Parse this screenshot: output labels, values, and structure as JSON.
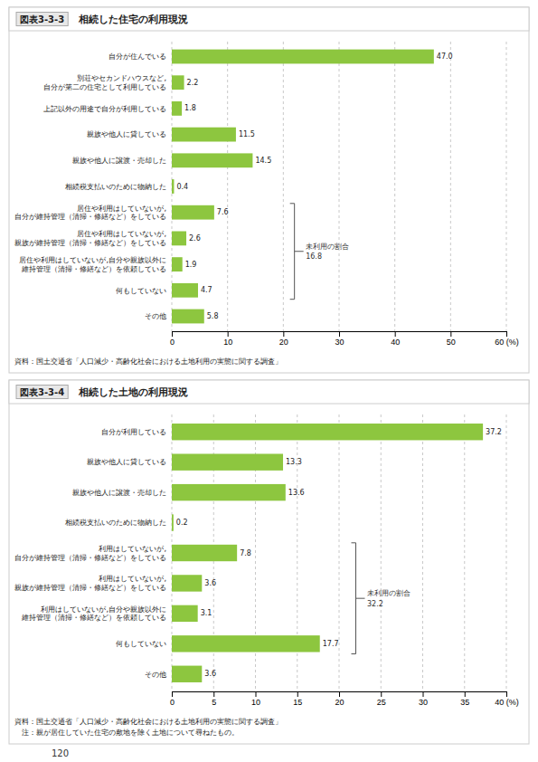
{
  "chart_data": [
    {
      "type": "bar",
      "orientation": "horizontal",
      "subtitle": "図表3-3-3",
      "title": "相続した住宅の利用現況",
      "categories": [
        "自分が住んでいる",
        "別荘やセカンドハウスなど,\n自分が第二の住宅として利用している",
        "上記以外の用途で自分が利用している",
        "親族や他人に貸している",
        "親族や他人に譲渡・売却した",
        "相続税支払いのために物納した",
        "居住や利用はしていないが,\n自分が維持管理（清掃・修繕など）をしている",
        "居住や利用はしていないが,\n親族が維持管理（清掃・修繕など）をしている",
        "居住や利用はしていないが,自分や親族以外に\n維持管理（清掃・修繕など）を依頼している",
        "何もしていない",
        "その他"
      ],
      "values": [
        47.0,
        2.2,
        1.8,
        11.5,
        14.5,
        0.4,
        7.6,
        2.6,
        1.9,
        4.7,
        5.8
      ],
      "value_labels": [
        "47.0",
        "2.2",
        "1.8",
        "11.5",
        "14.5",
        "0.4",
        "7.6",
        "2.6",
        "1.9",
        "4.7",
        "5.8"
      ],
      "data_labels": true,
      "color": "#8dc63f",
      "xlim": [
        0,
        60
      ],
      "xticks": [
        0,
        10,
        20,
        30,
        40,
        50,
        {
          "value": 60,
          "label": "60 (%)"
        }
      ],
      "grid": true,
      "annotations": [
        {
          "type": "bracket",
          "category_indices": [
            6,
            7,
            8,
            9
          ],
          "x": 22.0,
          "text": "未利用の割合",
          "value": 16.8
        },
        {
          "type": "note",
          "text": "資料：国土交通省「人口減少・高齢化社会における土地利用の実態に関する調査」"
        }
      ]
    },
    {
      "type": "bar",
      "orientation": "horizontal",
      "subtitle": "図表3-3-4",
      "title": "相続した土地の利用現況",
      "categories": [
        "自分が利用している",
        "親族や他人に貸している",
        "親族や他人に譲渡・売却した",
        "相続税支払いのために物納した",
        "利用はしていないが,\n自分が維持管理（清掃・修繕など）をしている",
        "利用はしていないが,\n親族が維持管理（清掃・修繕など）をしている",
        "利用はしていないが,自分や親族以外に\n維持管理（清掃・修繕など）を依頼している",
        "何もしていない",
        "その他"
      ],
      "values": [
        37.2,
        13.3,
        13.6,
        0.2,
        7.8,
        3.6,
        3.1,
        17.7,
        3.6
      ],
      "data_labels": true,
      "color": "#8dc63f",
      "xlim": [
        0,
        40
      ],
      "xticks": [
        0,
        5,
        10,
        15,
        20,
        25,
        30,
        35,
        {
          "value": 40,
          "label": "40 (%)"
        }
      ],
      "grid": true,
      "annotations": [
        {
          "type": "bracket",
          "category_indices": [
            4,
            5,
            6,
            7
          ],
          "x": 22.0,
          "text": "未利用の割合",
          "value": 32.2
        },
        {
          "type": "note",
          "text": "資料：国土交通省「人口減少・高齢化社会における土地利用の実態に関する調査」"
        },
        {
          "type": "note",
          "text": "注：親が居住していた住宅の敷地を除く土地について尋ねたもの。"
        }
      ]
    }
  ],
  "page_number": "120"
}
